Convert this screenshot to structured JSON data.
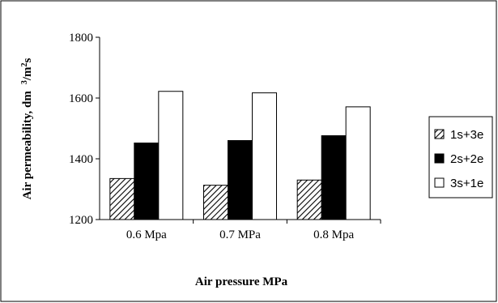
{
  "chart_data": {
    "type": "bar",
    "categories": [
      "0.6 Mpa",
      "0.7 MPa",
      "0.8 Mpa"
    ],
    "series": [
      {
        "name": "1s+3e",
        "values": [
          1335,
          1313,
          1330
        ],
        "pattern": "hatch",
        "color": "#000000"
      },
      {
        "name": "2s+2e",
        "values": [
          1452,
          1460,
          1476
        ],
        "pattern": "solid",
        "color": "#000000"
      },
      {
        "name": "3s+1e",
        "values": [
          1622,
          1617,
          1571
        ],
        "pattern": "empty",
        "color": "#ffffff"
      }
    ],
    "ylabel_main": "Air permeability,  dm",
    "ylabel_unit": "3/m",
    "ylabel_unit_tail": "2",
    "ylabel_suffix": "s",
    "xlabel": "Air pressure MPa",
    "ylim": [
      1200,
      1800
    ],
    "yticks": [
      "1200",
      "1400",
      "1600",
      "1800"
    ],
    "ytick_values": [
      1200,
      1400,
      1600,
      1800
    ],
    "grid": false,
    "legend_position": "right"
  }
}
